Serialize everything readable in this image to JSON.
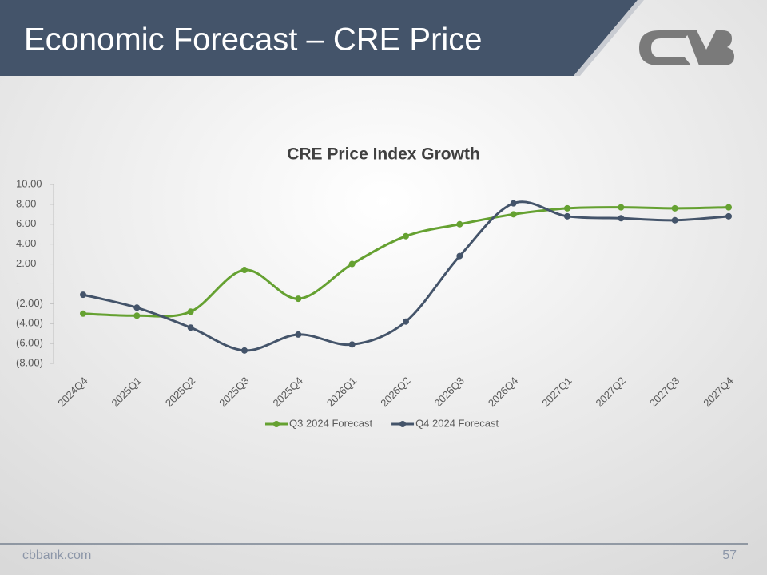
{
  "slide_title": "Economic Forecast – CRE Price",
  "footer": {
    "site": "cbbank.com",
    "page": "57"
  },
  "chart_data": {
    "type": "line",
    "title": "CRE Price Index Growth",
    "categories": [
      "2024Q4",
      "2025Q1",
      "2025Q2",
      "2025Q3",
      "2025Q4",
      "2026Q1",
      "2026Q2",
      "2026Q3",
      "2026Q4",
      "2027Q1",
      "2027Q2",
      "2027Q3",
      "2027Q4"
    ],
    "series": [
      {
        "name": "Q3 2024 Forecast",
        "color": "#65a131",
        "values": [
          -3.0,
          -3.2,
          -2.8,
          1.4,
          -1.5,
          2.0,
          4.8,
          6.0,
          7.0,
          7.6,
          7.7,
          7.6,
          7.7
        ]
      },
      {
        "name": "Q4 2024 Forecast",
        "color": "#44546a",
        "values": [
          -1.1,
          -2.4,
          -4.4,
          -6.7,
          -5.1,
          -6.1,
          -3.8,
          2.8,
          8.1,
          6.8,
          6.6,
          6.4,
          6.8
        ]
      }
    ],
    "ylim": [
      -8,
      10
    ],
    "yticks": [
      {
        "value": 10,
        "label": "10.00"
      },
      {
        "value": 8,
        "label": "8.00"
      },
      {
        "value": 6,
        "label": "6.00"
      },
      {
        "value": 4,
        "label": "4.00"
      },
      {
        "value": 2,
        "label": "2.00"
      },
      {
        "value": 0,
        "label": "-"
      },
      {
        "value": -2,
        "label": "(2.00)"
      },
      {
        "value": -4,
        "label": "(4.00)"
      },
      {
        "value": -6,
        "label": "(6.00)"
      },
      {
        "value": -8,
        "label": "(8.00)"
      }
    ],
    "grid": false,
    "smooth": true,
    "legend": "bottom"
  }
}
